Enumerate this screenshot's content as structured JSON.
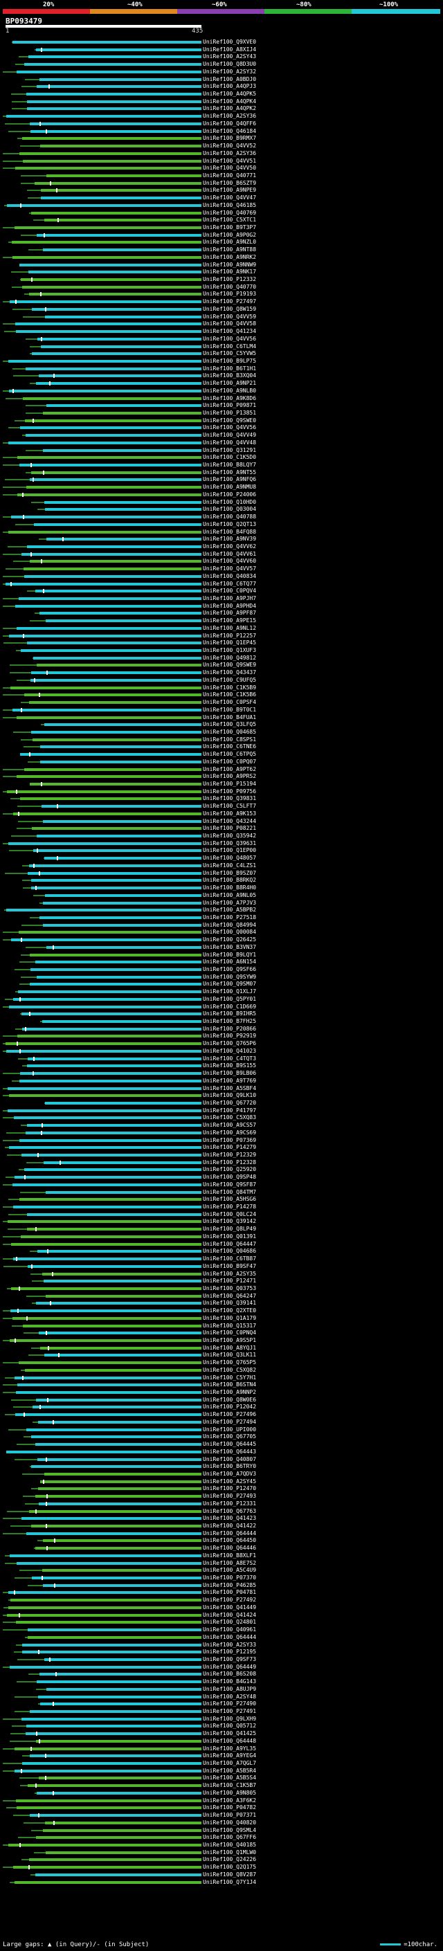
{
  "legend": {
    "labels": [
      "20%",
      "~40%",
      "~60%",
      "~80%",
      "~100%"
    ],
    "colors": [
      "#e0202a",
      "#e08820",
      "#8a3fae",
      "#2bb33a",
      "#22c8d8"
    ]
  },
  "query": {
    "id": "BP093479",
    "start": "1",
    "end": "435"
  },
  "hit_colors": {
    "high": "#22c8d8",
    "mid": "#52b82a",
    "low": "#2f7f26",
    "line": "#2f7f26"
  },
  "hits": [
    "UniRef100_Q9XVE0",
    "UniRef100_A8XIJ4",
    "UniRef100_A2SY43",
    "UniRef100_Q8D3U0",
    "UniRef100_A2SY32",
    "UniRef100_A0BDJ0",
    "UniRef100_A4QPJ3",
    "UniRef100_A4QPK5",
    "UniRef100_A4QPK4",
    "UniRef100_A4QPK2",
    "UniRef100_A2SY36",
    "UniRef100_Q4QFF6",
    "UniRef100_Q46184",
    "UniRef100_B9RMX7",
    "UniRef100_Q4VV52",
    "UniRef100_A2SY36",
    "UniRef100_Q4VV51",
    "UniRef100_Q4VV50",
    "UniRef100_Q40771",
    "UniRef100_B6SZT9",
    "UniRef100_A9NPE9",
    "UniRef100_Q4VV47",
    "UniRef100_Q46185",
    "UniRef100_Q40769",
    "UniRef100_C5XTC1",
    "UniRef100_B9T3P7",
    "UniRef100_A9P0G2",
    "UniRef100_A9NZL0",
    "UniRef100_A9NT88",
    "UniRef100_A9NRK2",
    "UniRef100_A9NNW9",
    "UniRef100_A9NK17",
    "UniRef100_P12332",
    "UniRef100_Q40770",
    "UniRef100_P19193",
    "UniRef100_P27497",
    "UniRef100_Q8W159",
    "UniRef100_Q4VV59",
    "UniRef100_Q4VV58",
    "UniRef100_Q41234",
    "UniRef100_Q4VV56",
    "UniRef100_C6TLM4",
    "UniRef100_C5YVW5",
    "UniRef100_B9LP75",
    "UniRef100_B6T1H1",
    "UniRef100_B3XQ04",
    "UniRef100_A9NP21",
    "UniRef100_A9NLB0",
    "UniRef100_A9K8D6",
    "UniRef100_P09871",
    "UniRef100_P13851",
    "UniRef100_Q9SWE0",
    "UniRef100_Q4VV56",
    "UniRef100_Q4VV49",
    "UniRef100_Q4VV48",
    "UniRef100_Q31291",
    "UniRef100_C1K5D0",
    "UniRef100_B8LQY7",
    "UniRef100_A9NT55",
    "UniRef100_A9NFQ6",
    "UniRef100_A9NMU8",
    "UniRef100_P24006",
    "UniRef100_Q10HD0",
    "UniRef100_Q03004",
    "UniRef100_Q40788",
    "UniRef100_Q2QT13",
    "UniRef100_B4FQ88",
    "UniRef100_A9NV39",
    "UniRef100_Q4VV62",
    "UniRef100_Q4VV61",
    "UniRef100_Q4VV60",
    "UniRef100_Q4VV57",
    "UniRef100_Q40834",
    "UniRef100_C6TQ77",
    "UniRef100_C0PQV4",
    "UniRef100_A9PJH7",
    "UniRef100_A9PHD4",
    "UniRef100_A9PF87",
    "UniRef100_A9PE15",
    "UniRef100_A9NL12",
    "UniRef100_P12257",
    "UniRef100_Q1EP45",
    "UniRef100_Q1XUF3",
    "UniRef100_Q49812",
    "UniRef100_Q9SWE9",
    "UniRef100_Q43437",
    "UniRef100_C9UFQ5",
    "UniRef100_C1K5B9",
    "UniRef100_C1K5B6",
    "UniRef100_C0PSF4",
    "UniRef100_B9T0C1",
    "UniRef100_B4FUA1",
    "UniRef100_Q3LFQ5",
    "UniRef100_Q04685",
    "UniRef100_C8SPS1",
    "UniRef100_C6TNE6",
    "UniRef100_C6TPQ5",
    "UniRef100_C0PQ07",
    "UniRef100_A9PT62",
    "UniRef100_A9PRS2",
    "UniRef100_P15194",
    "UniRef100_P09756",
    "UniRef100_Q39831",
    "UniRef100_C5LFT7",
    "UniRef100_A9K153",
    "UniRef100_Q43244",
    "UniRef100_P08221",
    "UniRef100_Q35942",
    "UniRef100_Q39631",
    "UniRef100_Q1EP00",
    "UniRef100_Q48057",
    "UniRef100_C4LZS1",
    "UniRef100_B9SZ07",
    "UniRef100_B8RKQ2",
    "UniRef100_B8R4H0",
    "UniRef100_A9NL05",
    "UniRef100_A7PJV3",
    "UniRef100_A5BPB2",
    "UniRef100_P27518",
    "UniRef100_Q84994",
    "UniRef100_Q00084",
    "UniRef100_Q26425",
    "UniRef100_B3VN37",
    "UniRef100_B9LQY1",
    "UniRef100_A6N154",
    "UniRef100_Q9SF66",
    "UniRef100_Q9SYW9",
    "UniRef100_Q9SM07",
    "UniRef100_Q1XLJ7",
    "UniRef100_Q5PY01",
    "UniRef100_C1D669",
    "UniRef100_B9IHR5",
    "UniRef100_B7FH25",
    "UniRef100_P20866",
    "UniRef100_P92919",
    "UniRef100_Q765P6",
    "UniRef100_Q41023",
    "UniRef100_C4TQT3",
    "UniRef100_B9S155",
    "UniRef100_B9LB06",
    "UniRef100_A9T769",
    "UniRef100_A5SBF4",
    "UniRef100_Q9LK10",
    "UniRef100_Q67720",
    "UniRef100_P41797",
    "UniRef100_C5XQ83",
    "UniRef100_A9CS57",
    "UniRef100_A9CS69",
    "UniRef100_P07369",
    "UniRef100_P14279",
    "UniRef100_P12329",
    "UniRef100_P12328",
    "UniRef100_Q25920",
    "UniRef100_Q9SP48",
    "UniRef100_Q9SF87",
    "UniRef100_Q84TM7",
    "UniRef100_A5HSG6",
    "UniRef100_P14278",
    "UniRef100_Q0LC24",
    "UniRef100_Q39142",
    "UniRef100_Q8LP49",
    "UniRef100_Q01391",
    "UniRef100_Q64447",
    "UniRef100_Q04686",
    "UniRef100_C6TB87",
    "UniRef100_B9SF47",
    "UniRef100_A2SY35",
    "UniRef100_P12471",
    "UniRef100_Q03753",
    "UniRef100_Q64247",
    "UniRef100_Q39141",
    "UniRef100_Q2XTE0",
    "UniRef100_Q1A179",
    "UniRef100_Q15317",
    "UniRef100_C0PNQ4",
    "UniRef100_A9S5P1",
    "UniRef100_A8YQJ1",
    "UniRef100_Q3LK11",
    "UniRef100_Q765P5",
    "UniRef100_C5XQ82",
    "UniRef100_C5Y7H1",
    "UniRef100_B6STN4",
    "UniRef100_A9NNP2",
    "UniRef100_Q8W0E6",
    "UniRef100_P12042",
    "UniRef100_P27496",
    "UniRef100_P27494",
    "UniRef100_UPI000",
    "UniRef100_Q67705",
    "UniRef100_Q64445",
    "UniRef100_Q64443",
    "UniRef100_Q40807",
    "UniRef100_B6TRY0",
    "UniRef100_A7QDV3",
    "UniRef100_A2SY45",
    "UniRef100_P12470",
    "UniRef100_P27493",
    "UniRef100_P12331",
    "UniRef100_Q67763",
    "UniRef100_Q41423",
    "UniRef100_Q41422",
    "UniRef100_Q64444",
    "UniRef100_Q64450",
    "UniRef100_Q64446",
    "UniRef100_B8XLF1",
    "UniRef100_A8E7S2",
    "UniRef100_A5C4U9",
    "UniRef100_P07370",
    "UniRef100_P46285",
    "UniRef100_P04781",
    "UniRef100_P27492",
    "UniRef100_Q41449",
    "UniRef100_Q41424",
    "UniRef100_Q24801",
    "UniRef100_Q40961",
    "UniRef100_Q64444",
    "UniRef100_A2SY33",
    "UniRef100_P12195",
    "UniRef100_Q9SF73",
    "UniRef100_Q64449",
    "UniRef100_B6S208",
    "UniRef100_B4G143",
    "UniRef100_A8UJP9",
    "UniRef100_A2SY48",
    "UniRef100_P27490",
    "UniRef100_P27491",
    "UniRef100_Q9LXH9",
    "UniRef100_Q05712",
    "UniRef100_Q41425",
    "UniRef100_Q64448",
    "UniRef100_A9YL35",
    "UniRef100_A9YEG4",
    "UniRef100_A7QGL7",
    "UniRef100_A5B5R4",
    "UniRef100_A5B5S4",
    "UniRef100_C1K5B7",
    "UniRef100_A9N805",
    "UniRef100_A3F6K2",
    "UniRef100_P04782",
    "UniRef100_P07371",
    "UniRef100_Q40820",
    "UniRef100_Q9SML4",
    "UniRef100_Q67FF6",
    "UniRef100_Q40185",
    "UniRef100_Q1MLW0",
    "UniRef100_Q24226",
    "UniRef100_Q2Q175",
    "UniRef100_Q8V287",
    "UniRef100_Q7Y1J4"
  ],
  "footer": {
    "legend_text": "Large gaps: ▲ (in Query)/- (in Subject)",
    "scale_text": "=100char."
  }
}
